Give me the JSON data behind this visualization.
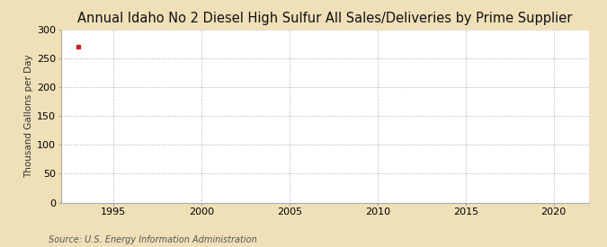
{
  "title": "Annual Idaho No 2 Diesel High Sulfur All Sales/Deliveries by Prime Supplier",
  "ylabel": "Thousand Gallons per Day",
  "source": "Source: U.S. Energy Information Administration",
  "fig_bg_color": "#f0e0b8",
  "plot_bg_color": "#ffffff",
  "data_x": [
    1993
  ],
  "data_y": [
    271
  ],
  "marker_color": "#cc2222",
  "marker_style": "s",
  "marker_size": 3.5,
  "xlim": [
    1992,
    2022
  ],
  "ylim": [
    0,
    300
  ],
  "yticks": [
    0,
    50,
    100,
    150,
    200,
    250,
    300
  ],
  "xticks": [
    1995,
    2000,
    2005,
    2010,
    2015,
    2020
  ],
  "grid_color": "#aaaaaa",
  "grid_linestyle": ":",
  "grid_linewidth": 0.7,
  "title_fontsize": 10.5,
  "ylabel_fontsize": 7.5,
  "tick_fontsize": 8,
  "source_fontsize": 7,
  "spine_color": "#aaaaaa"
}
